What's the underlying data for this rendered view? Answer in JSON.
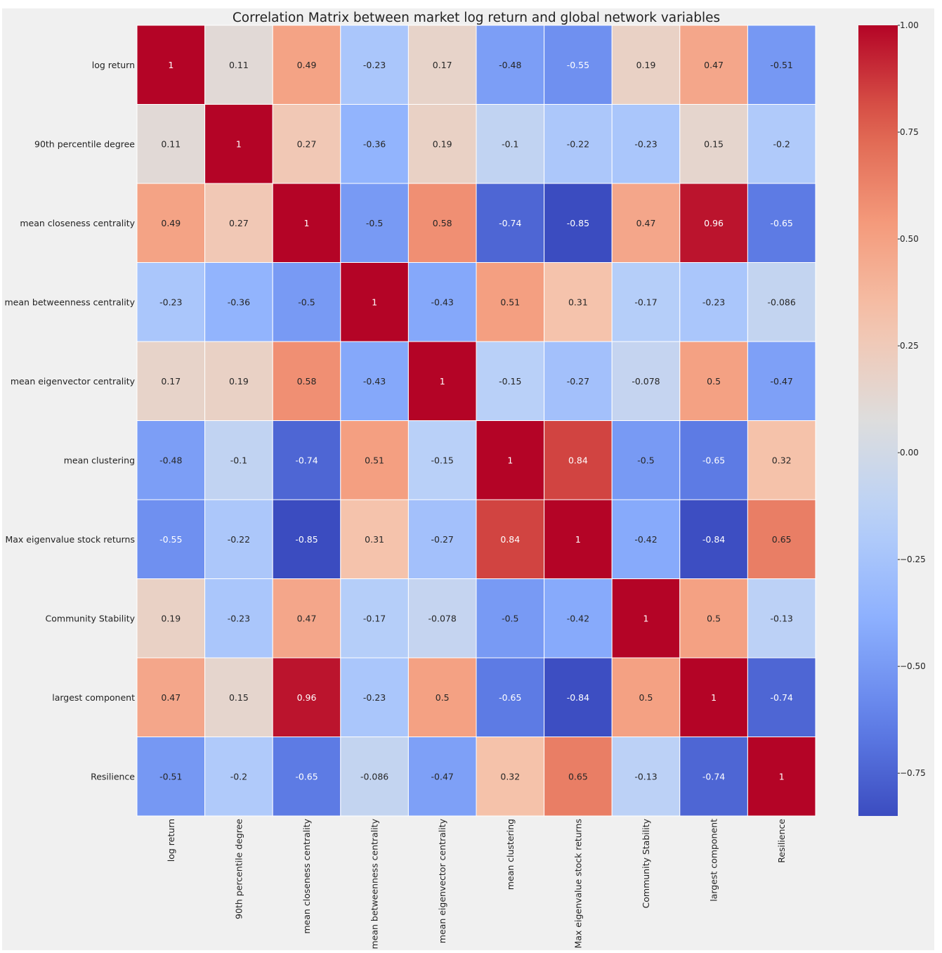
{
  "chart_data": {
    "type": "heatmap",
    "title": "Correlation Matrix between market log return and global network variables",
    "xlabel": "",
    "ylabel": "",
    "labels": [
      "log return",
      "90th percentile degree",
      "mean closeness centrality",
      "mean betweenness centrality",
      "mean eigenvector centrality",
      "mean clustering",
      "Max eigenvalue stock returns",
      "Community Stability",
      "largest component",
      "Resilience"
    ],
    "matrix": [
      [
        1,
        0.11,
        0.49,
        -0.23,
        0.17,
        -0.48,
        -0.55,
        0.19,
        0.47,
        -0.51
      ],
      [
        0.11,
        1,
        0.27,
        -0.36,
        0.19,
        -0.1,
        -0.22,
        -0.23,
        0.15,
        -0.2
      ],
      [
        0.49,
        0.27,
        1,
        -0.5,
        0.58,
        -0.74,
        -0.85,
        0.47,
        0.96,
        -0.65
      ],
      [
        -0.23,
        -0.36,
        -0.5,
        1,
        -0.43,
        0.51,
        0.31,
        -0.17,
        -0.23,
        -0.086
      ],
      [
        0.17,
        0.19,
        0.58,
        -0.43,
        1,
        -0.15,
        -0.27,
        -0.078,
        0.5,
        -0.47
      ],
      [
        -0.48,
        -0.1,
        -0.74,
        0.51,
        -0.15,
        1,
        0.84,
        -0.5,
        -0.65,
        0.32
      ],
      [
        -0.55,
        -0.22,
        -0.85,
        0.31,
        -0.27,
        0.84,
        1,
        -0.42,
        -0.84,
        0.65
      ],
      [
        0.19,
        -0.23,
        0.47,
        -0.17,
        -0.078,
        -0.5,
        -0.42,
        1,
        0.5,
        -0.13
      ],
      [
        0.47,
        0.15,
        0.96,
        -0.23,
        0.5,
        -0.65,
        -0.84,
        0.5,
        1,
        -0.74
      ],
      [
        -0.51,
        -0.2,
        -0.65,
        -0.086,
        -0.47,
        0.32,
        0.65,
        -0.13,
        -0.74,
        1
      ]
    ],
    "colormap": "coolwarm",
    "vmin": -0.85,
    "vmax": 1.0,
    "colorbar": {
      "ticks": [
        1.0,
        0.75,
        0.5,
        0.25,
        0.0,
        -0.25,
        -0.5,
        -0.75
      ],
      "tick_labels": [
        "1.00",
        "0.75",
        "0.50",
        "0.25",
        "0.00",
        "−0.25",
        "−0.50",
        "−0.75"
      ],
      "placement": "right"
    },
    "annotations": true,
    "grid": false,
    "background_color": "#f0f0f0",
    "cell_border_color": "#ffffff"
  }
}
